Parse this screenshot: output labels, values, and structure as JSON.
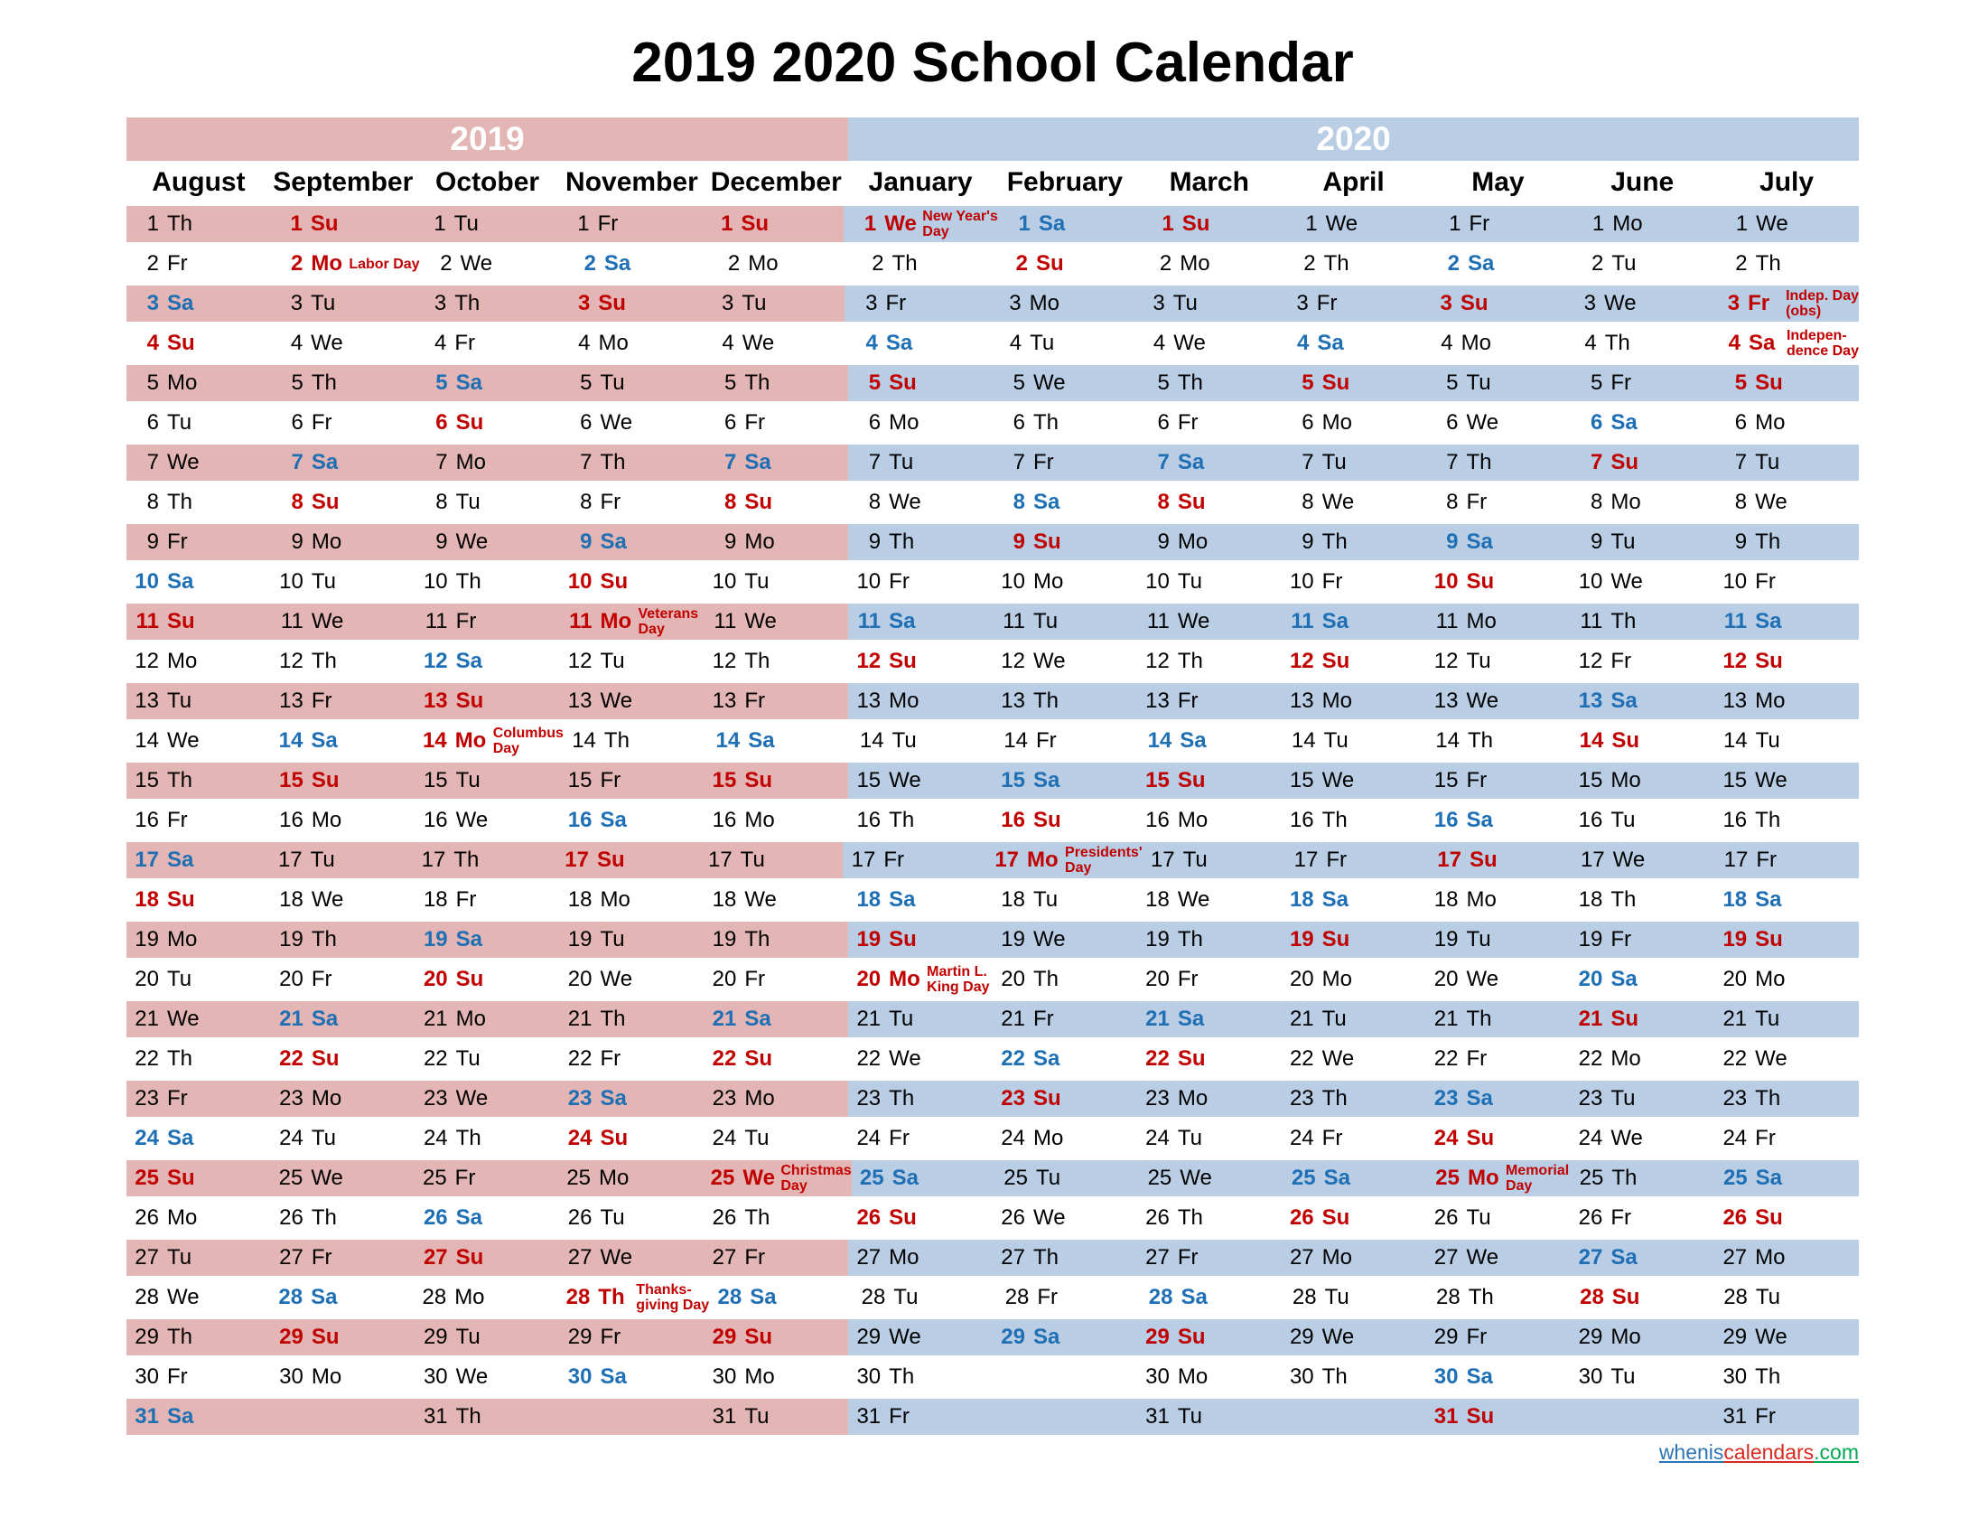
{
  "title": "2019 2020 School Calendar",
  "year_bands": [
    {
      "label": "2019",
      "columns": 5,
      "color": "#e3b5b4"
    },
    {
      "label": "2020",
      "columns": 7,
      "color": "#b9cde5"
    }
  ],
  "colors": {
    "pink_2019": "#e3b5b4",
    "blue_2020": "#b9cde5",
    "saturday_text": "#1f6fb5",
    "sunday_text": "#c00000",
    "holiday_text": "#c00000",
    "link_blue": "#2e74b5",
    "link_red": "#d62a1e",
    "link_green": "#00a651"
  },
  "footer": {
    "parts": [
      "whenis",
      "calendars",
      ".com"
    ]
  },
  "months": [
    {
      "name": "August",
      "group": "2019",
      "days": [
        "Th",
        "Fr",
        "Sa",
        "Su",
        "Mo",
        "Tu",
        "We",
        "Th",
        "Fr",
        "Sa",
        "Su",
        "Mo",
        "Tu",
        "We",
        "Th",
        "Fr",
        "Sa",
        "Su",
        "Mo",
        "Tu",
        "We",
        "Th",
        "Fr",
        "Sa",
        "Su",
        "Mo",
        "Tu",
        "We",
        "Th",
        "Fr",
        "Sa"
      ],
      "holidays": {}
    },
    {
      "name": "September",
      "group": "2019",
      "days": [
        "Su",
        "Mo",
        "Tu",
        "We",
        "Th",
        "Fr",
        "Sa",
        "Su",
        "Mo",
        "Tu",
        "We",
        "Th",
        "Fr",
        "Sa",
        "Su",
        "Mo",
        "Tu",
        "We",
        "Th",
        "Fr",
        "Sa",
        "Su",
        "Mo",
        "Tu",
        "We",
        "Th",
        "Fr",
        "Sa",
        "Su",
        "Mo"
      ],
      "holidays": {
        "2": [
          "Labor Day"
        ]
      }
    },
    {
      "name": "October",
      "group": "2019",
      "days": [
        "Tu",
        "We",
        "Th",
        "Fr",
        "Sa",
        "Su",
        "Mo",
        "Tu",
        "We",
        "Th",
        "Fr",
        "Sa",
        "Su",
        "Mo",
        "Tu",
        "We",
        "Th",
        "Fr",
        "Sa",
        "Su",
        "Mo",
        "Tu",
        "We",
        "Th",
        "Fr",
        "Sa",
        "Su",
        "Mo",
        "Tu",
        "We",
        "Th"
      ],
      "holidays": {
        "14": [
          "Columbus",
          "Day"
        ]
      }
    },
    {
      "name": "November",
      "group": "2019",
      "days": [
        "Fr",
        "Sa",
        "Su",
        "Mo",
        "Tu",
        "We",
        "Th",
        "Fr",
        "Sa",
        "Su",
        "Mo",
        "Tu",
        "We",
        "Th",
        "Fr",
        "Sa",
        "Su",
        "Mo",
        "Tu",
        "We",
        "Th",
        "Fr",
        "Sa",
        "Su",
        "Mo",
        "Tu",
        "We",
        "Th",
        "Fr",
        "Sa"
      ],
      "holidays": {
        "11": [
          "Veterans",
          "Day"
        ],
        "28": [
          "Thanks-",
          "giving Day"
        ]
      }
    },
    {
      "name": "December",
      "group": "2019",
      "days": [
        "Su",
        "Mo",
        "Tu",
        "We",
        "Th",
        "Fr",
        "Sa",
        "Su",
        "Mo",
        "Tu",
        "We",
        "Th",
        "Fr",
        "Sa",
        "Su",
        "Mo",
        "Tu",
        "We",
        "Th",
        "Fr",
        "Sa",
        "Su",
        "Mo",
        "Tu",
        "We",
        "Th",
        "Fr",
        "Sa",
        "Su",
        "Mo",
        "Tu"
      ],
      "holidays": {
        "25": [
          "Christmas",
          "Day"
        ]
      }
    },
    {
      "name": "January",
      "group": "2020",
      "days": [
        "We",
        "Th",
        "Fr",
        "Sa",
        "Su",
        "Mo",
        "Tu",
        "We",
        "Th",
        "Fr",
        "Sa",
        "Su",
        "Mo",
        "Tu",
        "We",
        "Th",
        "Fr",
        "Sa",
        "Su",
        "Mo",
        "Tu",
        "We",
        "Th",
        "Fr",
        "Sa",
        "Su",
        "Mo",
        "Tu",
        "We",
        "Th",
        "Fr"
      ],
      "holidays": {
        "1": [
          "New Year's",
          "Day"
        ],
        "20": [
          "Martin L.",
          "King Day"
        ]
      }
    },
    {
      "name": "February",
      "group": "2020",
      "days": [
        "Sa",
        "Su",
        "Mo",
        "Tu",
        "We",
        "Th",
        "Fr",
        "Sa",
        "Su",
        "Mo",
        "Tu",
        "We",
        "Th",
        "Fr",
        "Sa",
        "Su",
        "Mo",
        "Tu",
        "We",
        "Th",
        "Fr",
        "Sa",
        "Su",
        "Mo",
        "Tu",
        "We",
        "Th",
        "Fr",
        "Sa"
      ],
      "holidays": {
        "17": [
          "Presidents'",
          "Day"
        ]
      }
    },
    {
      "name": "March",
      "group": "2020",
      "days": [
        "Su",
        "Mo",
        "Tu",
        "We",
        "Th",
        "Fr",
        "Sa",
        "Su",
        "Mo",
        "Tu",
        "We",
        "Th",
        "Fr",
        "Sa",
        "Su",
        "Mo",
        "Tu",
        "We",
        "Th",
        "Fr",
        "Sa",
        "Su",
        "Mo",
        "Tu",
        "We",
        "Th",
        "Fr",
        "Sa",
        "Su",
        "Mo",
        "Tu"
      ],
      "holidays": {}
    },
    {
      "name": "April",
      "group": "2020",
      "days": [
        "We",
        "Th",
        "Fr",
        "Sa",
        "Su",
        "Mo",
        "Tu",
        "We",
        "Th",
        "Fr",
        "Sa",
        "Su",
        "Mo",
        "Tu",
        "We",
        "Th",
        "Fr",
        "Sa",
        "Su",
        "Mo",
        "Tu",
        "We",
        "Th",
        "Fr",
        "Sa",
        "Su",
        "Mo",
        "Tu",
        "We",
        "Th"
      ],
      "holidays": {}
    },
    {
      "name": "May",
      "group": "2020",
      "days": [
        "Fr",
        "Sa",
        "Su",
        "Mo",
        "Tu",
        "We",
        "Th",
        "Fr",
        "Sa",
        "Su",
        "Mo",
        "Tu",
        "We",
        "Th",
        "Fr",
        "Sa",
        "Su",
        "Mo",
        "Tu",
        "We",
        "Th",
        "Fr",
        "Sa",
        "Su",
        "Mo",
        "Tu",
        "We",
        "Th",
        "Fr",
        "Sa",
        "Su"
      ],
      "holidays": {
        "25": [
          "Memorial",
          "Day"
        ]
      }
    },
    {
      "name": "June",
      "group": "2020",
      "days": [
        "Mo",
        "Tu",
        "We",
        "Th",
        "Fr",
        "Sa",
        "Su",
        "Mo",
        "Tu",
        "We",
        "Th",
        "Fr",
        "Sa",
        "Su",
        "Mo",
        "Tu",
        "We",
        "Th",
        "Fr",
        "Sa",
        "Su",
        "Mo",
        "Tu",
        "We",
        "Th",
        "Fr",
        "Sa",
        "Su",
        "Mo",
        "Tu"
      ],
      "holidays": {}
    },
    {
      "name": "July",
      "group": "2020",
      "days": [
        "We",
        "Th",
        "Fr",
        "Sa",
        "Su",
        "Mo",
        "Tu",
        "We",
        "Th",
        "Fr",
        "Sa",
        "Su",
        "Mo",
        "Tu",
        "We",
        "Th",
        "Fr",
        "Sa",
        "Su",
        "Mo",
        "Tu",
        "We",
        "Th",
        "Fr",
        "Sa",
        "Su",
        "Mo",
        "Tu",
        "We",
        "Th",
        "Fr"
      ],
      "holidays": {
        "3": [
          "Indep. Day",
          "(obs)"
        ],
        "4": [
          "Indepen-",
          "dence Day"
        ]
      }
    }
  ]
}
